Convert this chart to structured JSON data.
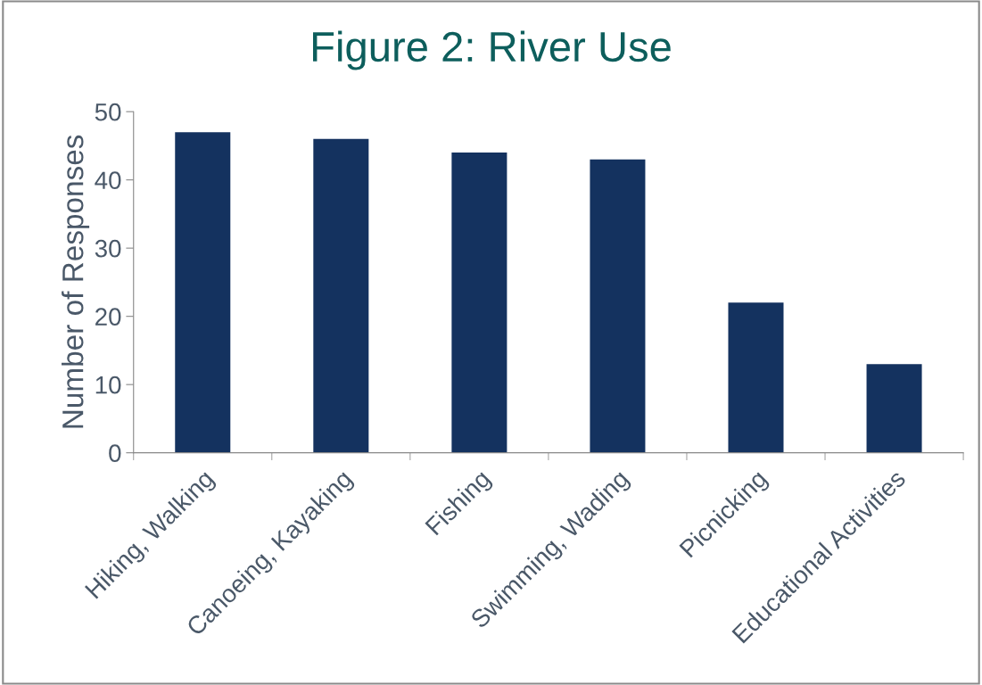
{
  "chart_data": {
    "type": "bar",
    "title": "Figure 2: River Use",
    "ylabel": "Number of Responses",
    "categories": [
      "Hiking, Walking",
      "Canoeing, Kayaking",
      "Fishing",
      "Swimming, Wading",
      "Picnicking",
      "Educational Activities"
    ],
    "values": [
      47,
      46,
      44,
      43,
      22,
      13
    ],
    "color": "#14325f",
    "ylim": [
      0,
      50
    ],
    "yticks": [
      0,
      10,
      20,
      30,
      40,
      50
    ],
    "grid": false,
    "legend": false
  }
}
